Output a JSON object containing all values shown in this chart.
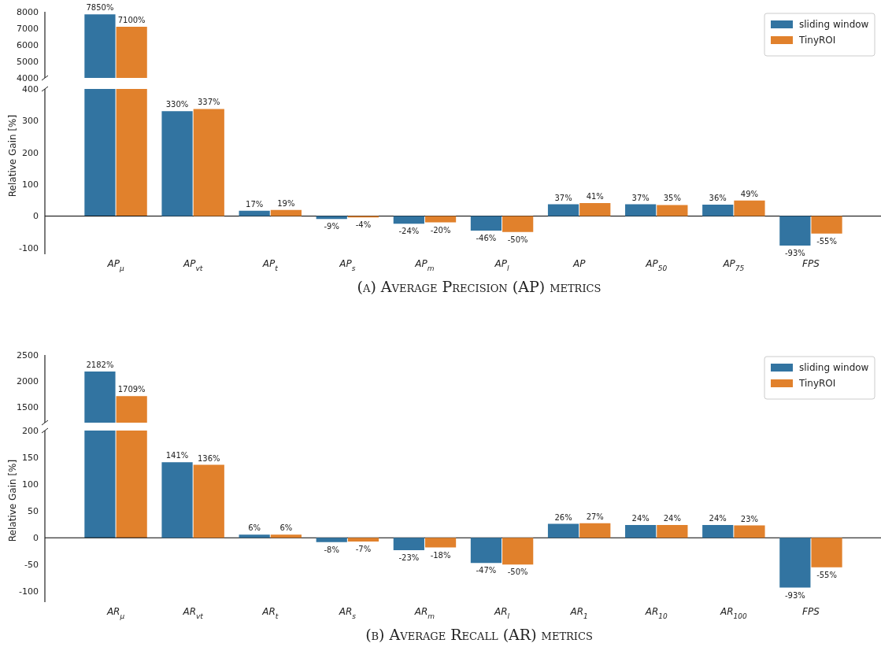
{
  "chart_data": [
    {
      "type": "bar",
      "categories": [
        null
      ],
      "ylim": [
        4000,
        8000
      ],
      "yticks": [
        4000,
        5000,
        6000,
        7000,
        8000
      ],
      "tick_labels": "y",
      "grid": false,
      "legend": "top right",
      "series": [
        {
          "name": "sliding window",
          "color": "#3274a1",
          "values": [
            7850
          ],
          "value_labels": [
            "7850%"
          ]
        },
        {
          "name": "TinyROI",
          "color": "#e1812c",
          "values": [
            7100
          ],
          "value_labels": [
            "7100%"
          ]
        }
      ]
    },
    {
      "type": "bar",
      "title": "(a) Average Precision (AP) metrics",
      "ylabel": "Relative Gain [%]",
      "categories": [
        "AP$_{μ}$",
        "AP$_{vt}$",
        "AP$_{t}$",
        "AP$_{s}$",
        "AP$_{m}$",
        "AP$_{l}$",
        "AP",
        "AP$_{50}$",
        "AP$_{75}$",
        "FPS"
      ],
      "ylim": [
        -120,
        400
      ],
      "yticks": [
        -100,
        0,
        100,
        200,
        300,
        400
      ],
      "grid": false,
      "legend": false,
      "ref_lines": [
        {
          "axis": "y",
          "value": 0,
          "color": "#000000"
        }
      ],
      "series": [
        {
          "color": "#3274a1",
          "values": [
            null,
            330,
            17,
            -9,
            -24,
            -46,
            37,
            37,
            36,
            -93
          ],
          "value_labels": [
            null,
            "330%",
            "17%",
            "-9%",
            "-24%",
            "-46%",
            "37%",
            "37%",
            "36%",
            "-93%"
          ]
        },
        {
          "color": "#e1812c",
          "values": [
            null,
            337,
            19,
            -4,
            -20,
            -50,
            41,
            35,
            49,
            -55
          ],
          "value_labels": [
            null,
            "337%",
            "19%",
            "-4%",
            "-20%",
            "-50%",
            "41%",
            "35%",
            "49%",
            "-55%"
          ]
        }
      ]
    },
    {
      "type": "bar",
      "categories": [
        null
      ],
      "ylim": [
        1200,
        2500
      ],
      "yticks": [
        1500,
        2000,
        2500
      ],
      "tick_labels": "y",
      "grid": false,
      "legend": "top right",
      "series": [
        {
          "name": "sliding window",
          "color": "#3274a1",
          "values": [
            2182
          ],
          "value_labels": [
            "2182%"
          ]
        },
        {
          "name": "TinyROI",
          "color": "#e1812c",
          "values": [
            1709
          ],
          "value_labels": [
            "1709%"
          ]
        }
      ]
    },
    {
      "type": "bar",
      "title": "(b) Average Recall (AR) metrics",
      "ylabel": "Relative Gain [%]",
      "categories": [
        "AR$_{μ}$",
        "AR$_{vt}$",
        "AR$_{t}$",
        "AR$_{s}$",
        "AR$_{m}$",
        "AR$_{l}$",
        "AR$_{1}$",
        "AR$_{10}$",
        "AR$_{100}$",
        "FPS"
      ],
      "ylim": [
        -120,
        200
      ],
      "yticks": [
        -100,
        -50,
        0,
        50,
        100,
        150,
        200
      ],
      "grid": false,
      "legend": false,
      "ref_lines": [
        {
          "axis": "y",
          "value": 0,
          "color": "#000000"
        }
      ],
      "series": [
        {
          "color": "#3274a1",
          "values": [
            null,
            141,
            6,
            -8,
            -23,
            -47,
            26,
            24,
            24,
            -93
          ],
          "value_labels": [
            null,
            "141%",
            "6%",
            "-8%",
            "-23%",
            "-47%",
            "26%",
            "24%",
            "24%",
            "-93%"
          ]
        },
        {
          "color": "#e1812c",
          "values": [
            null,
            136,
            6,
            -7,
            -18,
            -50,
            27,
            24,
            23,
            -55
          ],
          "value_labels": [
            null,
            "136%",
            "6%",
            "-7%",
            "-18%",
            "-50%",
            "27%",
            "24%",
            "23%",
            "-55%"
          ]
        }
      ]
    }
  ]
}
